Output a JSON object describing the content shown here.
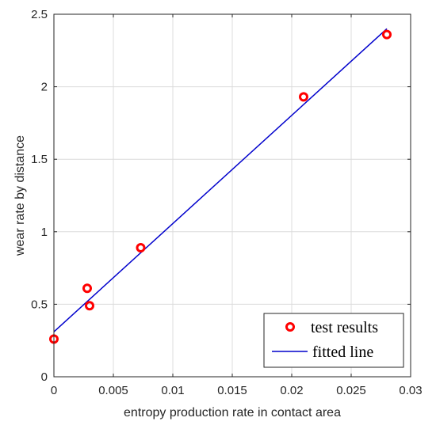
{
  "chart_data": {
    "type": "scatter",
    "title": "",
    "xlabel": "entropy production rate in contact area",
    "ylabel": "wear rate by distance",
    "xlim": [
      0,
      0.03
    ],
    "ylim": [
      0,
      2.5
    ],
    "xticks": [
      0,
      0.005,
      0.01,
      0.015,
      0.02,
      0.025,
      0.03
    ],
    "xtick_labels": [
      "0",
      "0.005",
      "0.01",
      "0.015",
      "0.02",
      "0.025",
      "0.03"
    ],
    "yticks": [
      0,
      0.5,
      1,
      1.5,
      2,
      2.5
    ],
    "ytick_labels": [
      "0",
      "0.5",
      "1",
      "1.5",
      "2",
      "2.5"
    ],
    "grid": true,
    "legend_position": "bottom-right",
    "series": [
      {
        "name": "test results",
        "kind": "markers",
        "color": "#ff0000",
        "x": [
          0.0,
          0.0028,
          0.003,
          0.0073,
          0.021,
          0.028
        ],
        "y": [
          0.26,
          0.61,
          0.49,
          0.89,
          1.93,
          2.36
        ]
      },
      {
        "name": "fitted line",
        "kind": "line",
        "color": "#0000cc",
        "x": [
          0.0,
          0.028
        ],
        "y": [
          0.31,
          2.4
        ]
      }
    ]
  }
}
